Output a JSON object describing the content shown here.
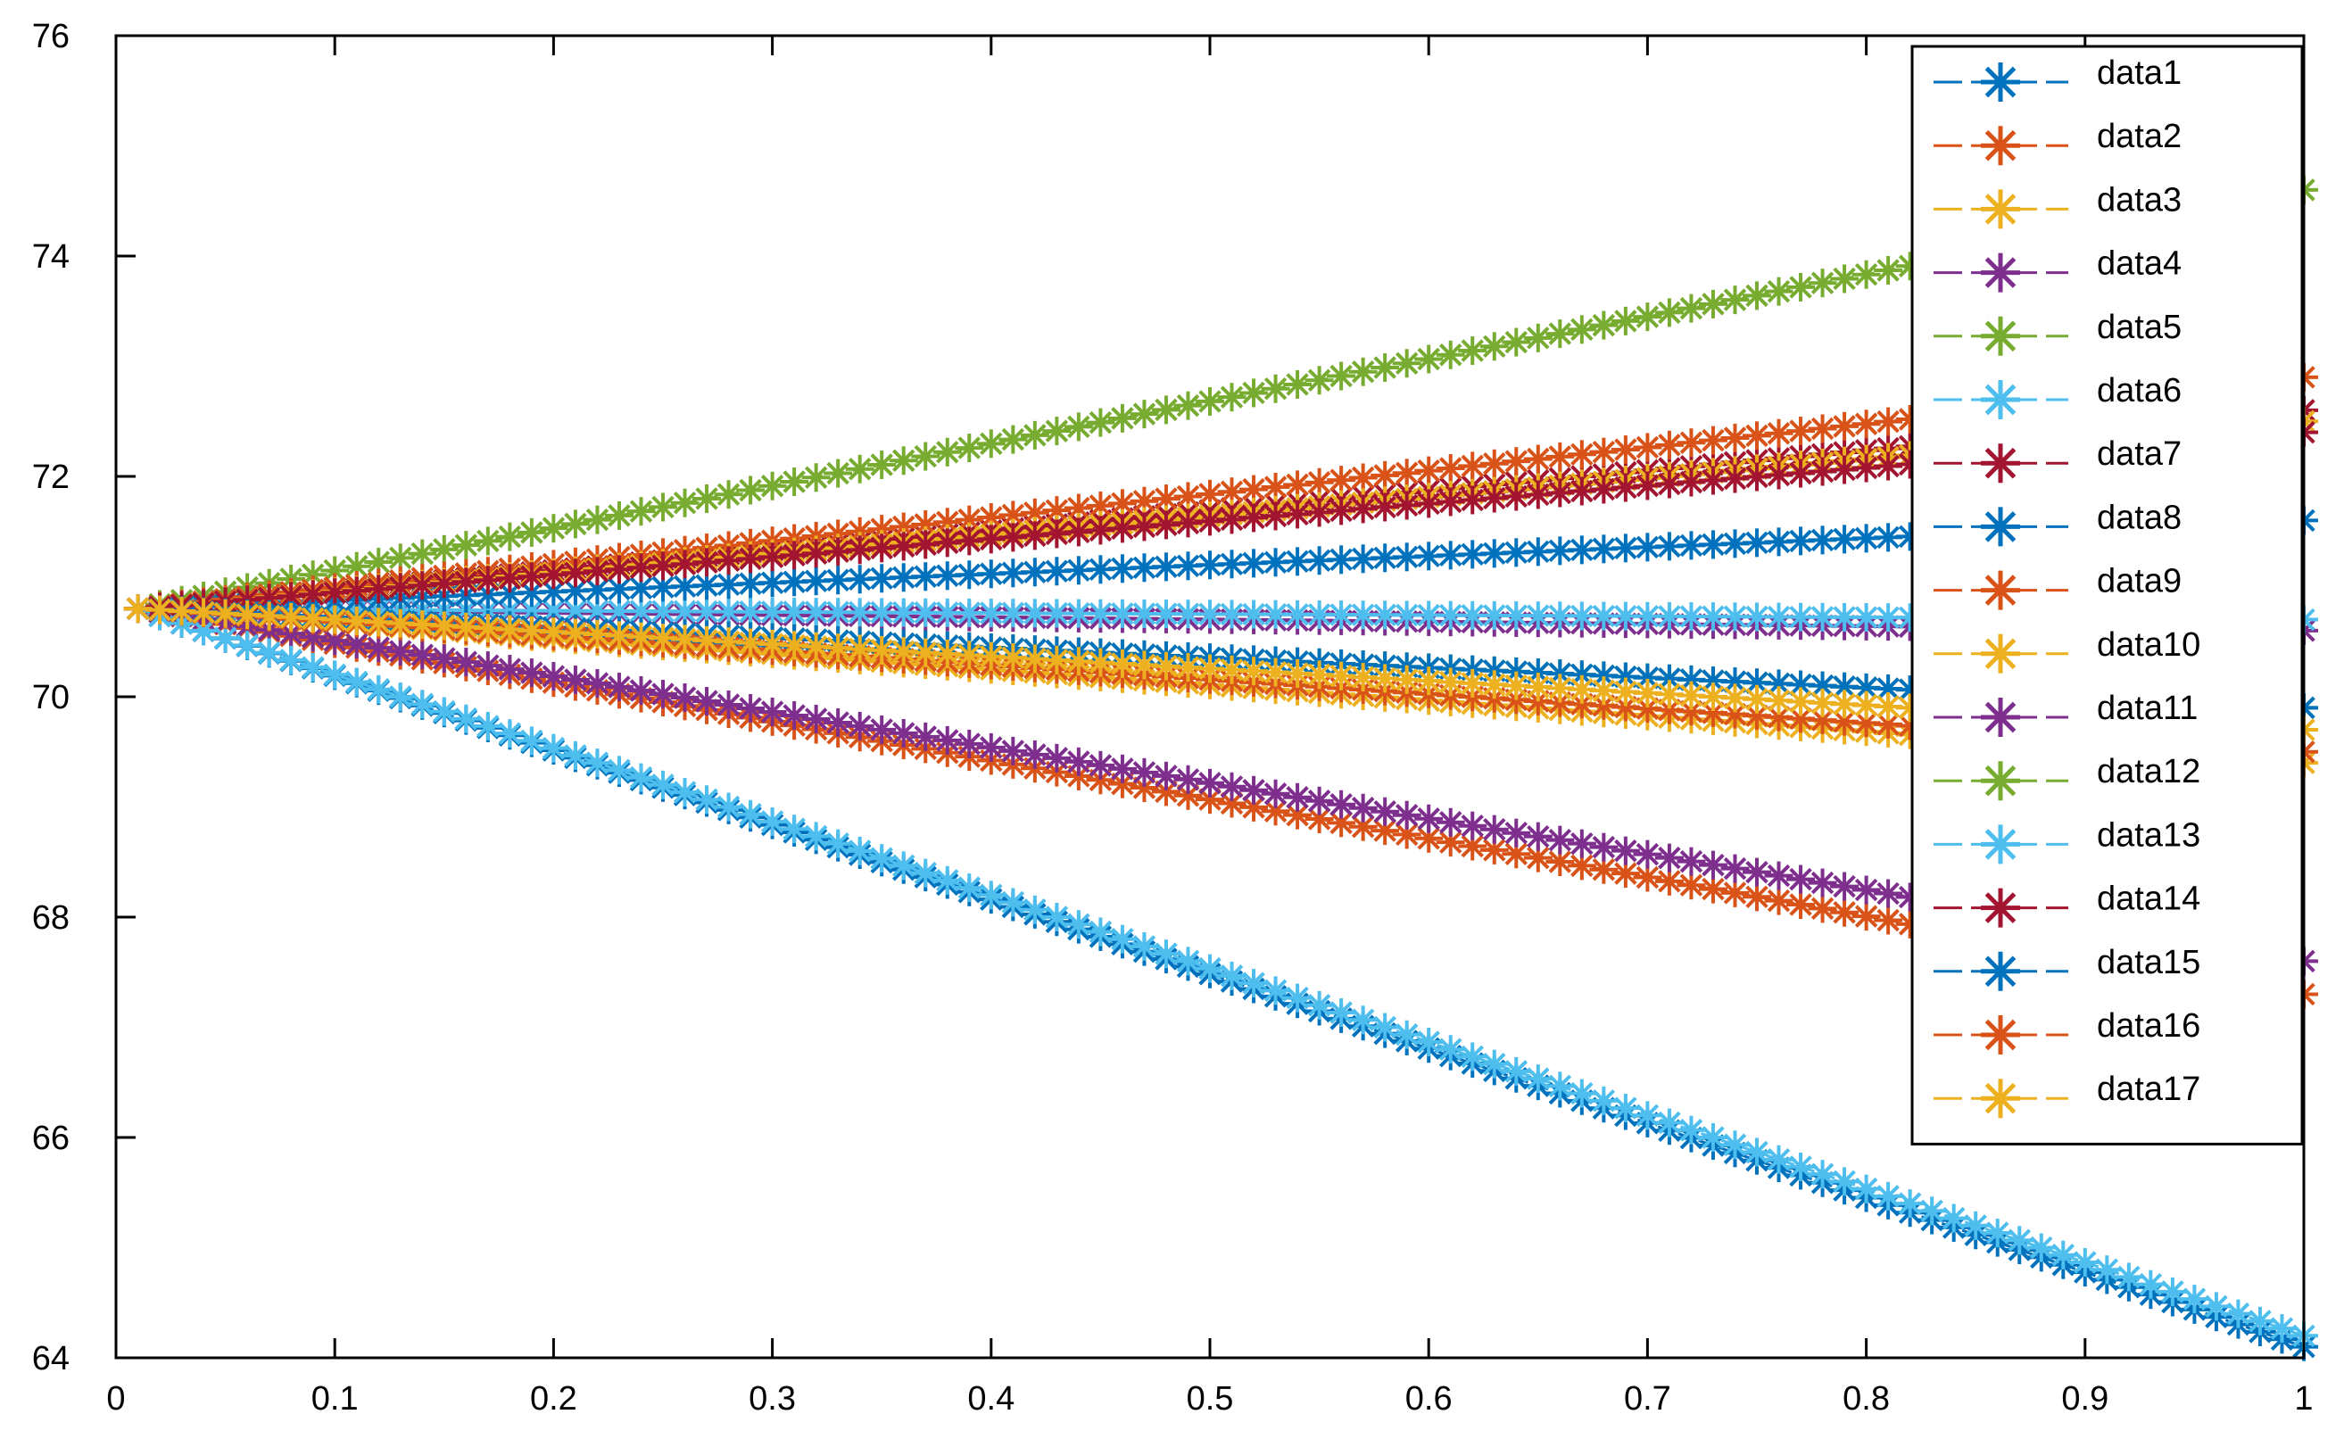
{
  "chart_data": {
    "type": "line",
    "title": "",
    "xlabel": "",
    "ylabel": "",
    "xlim": [
      0,
      1
    ],
    "ylim": [
      64,
      76
    ],
    "x_ticks": [
      0,
      0.1,
      0.2,
      0.3,
      0.4,
      0.5,
      0.6,
      0.7,
      0.8,
      0.9,
      1
    ],
    "x_tick_labels": [
      "0",
      "0.1",
      "0.2",
      "0.3",
      "0.4",
      "0.5",
      "0.6",
      "0.7",
      "0.8",
      "0.9",
      "1"
    ],
    "y_ticks": [
      64,
      66,
      68,
      70,
      72,
      74,
      76
    ],
    "y_tick_labels": [
      "64",
      "66",
      "68",
      "70",
      "72",
      "74",
      "76"
    ],
    "grid": false,
    "legend_position": "top-right",
    "marker": "asterisk",
    "line_style": "dashed",
    "x_start": 0.01,
    "x_end": 1,
    "series": [
      {
        "name": "data1",
        "color": "#0072BD",
        "start": 70.8,
        "end": 64.1
      },
      {
        "name": "data2",
        "color": "#D95319",
        "start": 70.8,
        "end": 67.3
      },
      {
        "name": "data3",
        "color": "#EDB120",
        "start": 70.8,
        "end": 69.4
      },
      {
        "name": "data4",
        "color": "#7E2F8E",
        "start": 70.8,
        "end": 70.6
      },
      {
        "name": "data5",
        "color": "#77AC30",
        "start": 70.8,
        "end": 74.6
      },
      {
        "name": "data6",
        "color": "#4DBEEE",
        "start": 70.8,
        "end": 70.7
      },
      {
        "name": "data7",
        "color": "#A2142F",
        "start": 70.8,
        "end": 72.6
      },
      {
        "name": "data8",
        "color": "#0072BD",
        "start": 70.8,
        "end": 71.6
      },
      {
        "name": "data9",
        "color": "#D95319",
        "start": 70.8,
        "end": 72.9
      },
      {
        "name": "data10",
        "color": "#EDB120",
        "start": 70.8,
        "end": 72.5
      },
      {
        "name": "data11",
        "color": "#7E2F8E",
        "start": 70.8,
        "end": 67.6
      },
      {
        "name": "data12",
        "color": "#77AC30",
        "start": 70.8,
        "end": 69.9
      },
      {
        "name": "data13",
        "color": "#4DBEEE",
        "start": 70.8,
        "end": 64.2
      },
      {
        "name": "data14",
        "color": "#A2142F",
        "start": 70.8,
        "end": 72.4
      },
      {
        "name": "data15",
        "color": "#0072BD",
        "start": 70.8,
        "end": 69.9
      },
      {
        "name": "data16",
        "color": "#D95319",
        "start": 70.8,
        "end": 69.5
      },
      {
        "name": "data17",
        "color": "#EDB120",
        "start": 70.8,
        "end": 69.7
      }
    ]
  }
}
